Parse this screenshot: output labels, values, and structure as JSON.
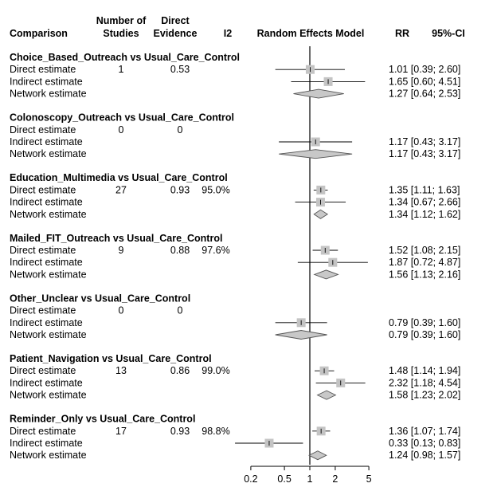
{
  "headers": {
    "comparison": "Comparison",
    "n_studies_1": "Number of",
    "n_studies_2": "Studies",
    "direct_1": "Direct",
    "direct_2": "Evidence",
    "i2": "I2",
    "model": "Random Effects Model",
    "rr": "RR",
    "ci": "95%-CI"
  },
  "chart_data": {
    "type": "forest",
    "x_scale": "log",
    "xlim": [
      0.2,
      5
    ],
    "ref_line": 1,
    "x_ticks": [
      0.2,
      0.5,
      1,
      2,
      5
    ],
    "x_tick_labels": [
      "0.2",
      "0.5",
      "1",
      "2",
      "5"
    ],
    "groups": [
      {
        "title": "Choice_Based_Outreach vs Usual_Care_Control",
        "rows": [
          {
            "label": "Direct estimate",
            "n": "1",
            "direct": "0.53",
            "i2": "",
            "rr": 1.01,
            "lo": 0.39,
            "hi": 2.6,
            "text": "1.01 [0.39; 2.60]",
            "kind": "square"
          },
          {
            "label": "Indirect estimate",
            "n": "",
            "direct": "",
            "i2": "",
            "rr": 1.65,
            "lo": 0.6,
            "hi": 4.51,
            "text": "1.65 [0.60; 4.51]",
            "kind": "square"
          },
          {
            "label": "Network estimate",
            "n": "",
            "direct": "",
            "i2": "",
            "rr": 1.27,
            "lo": 0.64,
            "hi": 2.53,
            "text": "1.27 [0.64; 2.53]",
            "kind": "diamond"
          }
        ]
      },
      {
        "title": "Colonoscopy_Outreach vs Usual_Care_Control",
        "rows": [
          {
            "label": "Direct estimate",
            "n": "0",
            "direct": "0",
            "i2": "",
            "rr": null,
            "lo": null,
            "hi": null,
            "text": "",
            "kind": "none"
          },
          {
            "label": "Indirect estimate",
            "n": "",
            "direct": "",
            "i2": "",
            "rr": 1.17,
            "lo": 0.43,
            "hi": 3.17,
            "text": "1.17 [0.43; 3.17]",
            "kind": "square"
          },
          {
            "label": "Network estimate",
            "n": "",
            "direct": "",
            "i2": "",
            "rr": 1.17,
            "lo": 0.43,
            "hi": 3.17,
            "text": "1.17 [0.43; 3.17]",
            "kind": "diamond"
          }
        ]
      },
      {
        "title": "Education_Multimedia vs Usual_Care_Control",
        "rows": [
          {
            "label": "Direct estimate",
            "n": "27",
            "direct": "0.93",
            "i2": "95.0%",
            "rr": 1.35,
            "lo": 1.11,
            "hi": 1.63,
            "text": "1.35 [1.11; 1.63]",
            "kind": "square"
          },
          {
            "label": "Indirect estimate",
            "n": "",
            "direct": "",
            "i2": "",
            "rr": 1.34,
            "lo": 0.67,
            "hi": 2.66,
            "text": "1.34 [0.67; 2.66]",
            "kind": "square"
          },
          {
            "label": "Network estimate",
            "n": "",
            "direct": "",
            "i2": "",
            "rr": 1.34,
            "lo": 1.12,
            "hi": 1.62,
            "text": "1.34 [1.12; 1.62]",
            "kind": "diamond"
          }
        ]
      },
      {
        "title": "Mailed_FIT_Outreach vs Usual_Care_Control",
        "rows": [
          {
            "label": "Direct estimate",
            "n": "9",
            "direct": "0.88",
            "i2": "97.6%",
            "rr": 1.52,
            "lo": 1.08,
            "hi": 2.15,
            "text": "1.52 [1.08; 2.15]",
            "kind": "square"
          },
          {
            "label": "Indirect estimate",
            "n": "",
            "direct": "",
            "i2": "",
            "rr": 1.87,
            "lo": 0.72,
            "hi": 4.87,
            "text": "1.87 [0.72; 4.87]",
            "kind": "square"
          },
          {
            "label": "Network estimate",
            "n": "",
            "direct": "",
            "i2": "",
            "rr": 1.56,
            "lo": 1.13,
            "hi": 2.16,
            "text": "1.56 [1.13; 2.16]",
            "kind": "diamond"
          }
        ]
      },
      {
        "title": "Other_Unclear vs Usual_Care_Control",
        "rows": [
          {
            "label": "Direct estimate",
            "n": "0",
            "direct": "0",
            "i2": "",
            "rr": null,
            "lo": null,
            "hi": null,
            "text": "",
            "kind": "none"
          },
          {
            "label": "Indirect estimate",
            "n": "",
            "direct": "",
            "i2": "",
            "rr": 0.79,
            "lo": 0.39,
            "hi": 1.6,
            "text": "0.79 [0.39; 1.60]",
            "kind": "square"
          },
          {
            "label": "Network estimate",
            "n": "",
            "direct": "",
            "i2": "",
            "rr": 0.79,
            "lo": 0.39,
            "hi": 1.6,
            "text": "0.79 [0.39; 1.60]",
            "kind": "diamond"
          }
        ]
      },
      {
        "title": "Patient_Navigation vs Usual_Care_Control",
        "rows": [
          {
            "label": "Direct estimate",
            "n": "13",
            "direct": "0.86",
            "i2": "99.0%",
            "rr": 1.48,
            "lo": 1.14,
            "hi": 1.94,
            "text": "1.48 [1.14; 1.94]",
            "kind": "square"
          },
          {
            "label": "Indirect estimate",
            "n": "",
            "direct": "",
            "i2": "",
            "rr": 2.32,
            "lo": 1.18,
            "hi": 4.54,
            "text": "2.32 [1.18; 4.54]",
            "kind": "square"
          },
          {
            "label": "Network estimate",
            "n": "",
            "direct": "",
            "i2": "",
            "rr": 1.58,
            "lo": 1.23,
            "hi": 2.02,
            "text": "1.58 [1.23; 2.02]",
            "kind": "diamond"
          }
        ]
      },
      {
        "title": "Reminder_Only vs Usual_Care_Control",
        "rows": [
          {
            "label": "Direct estimate",
            "n": "17",
            "direct": "0.93",
            "i2": "98.8%",
            "rr": 1.36,
            "lo": 1.07,
            "hi": 1.74,
            "text": "1.36 [1.07; 1.74]",
            "kind": "square"
          },
          {
            "label": "Indirect estimate",
            "n": "",
            "direct": "",
            "i2": "",
            "rr": 0.33,
            "lo": 0.13,
            "hi": 0.83,
            "text": "0.33 [0.13; 0.83]",
            "kind": "square"
          },
          {
            "label": "Network estimate",
            "n": "",
            "direct": "",
            "i2": "",
            "rr": 1.24,
            "lo": 0.98,
            "hi": 1.57,
            "text": "1.24 [0.98; 1.57]",
            "kind": "diamond"
          }
        ]
      }
    ]
  },
  "colors": {
    "square_fill": "#c4c4c4",
    "diamond_fill": "#c8c8c8",
    "diamond_stroke": "#555555",
    "line": "#000000"
  }
}
